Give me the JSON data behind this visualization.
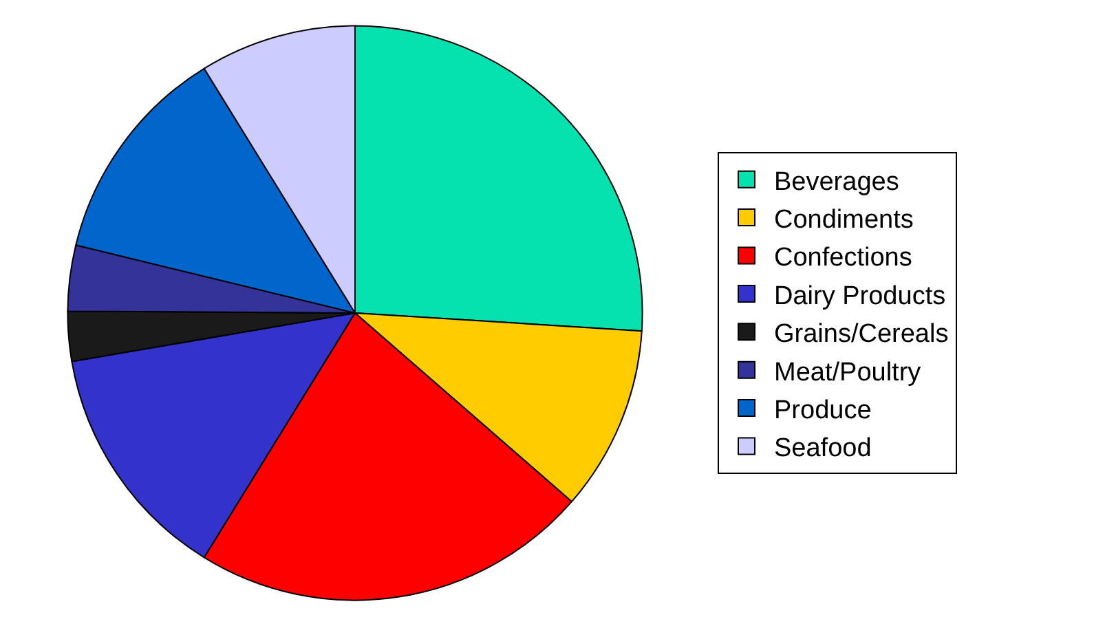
{
  "chart_data": {
    "type": "pie",
    "categories": [
      "Beverages",
      "Condiments",
      "Confections",
      "Dairy Products",
      "Grains/Cereals",
      "Meat/Poultry",
      "Produce",
      "Seafood"
    ],
    "values": [
      26,
      10.4,
      22.4,
      13.5,
      2.8,
      3.7,
      12.4,
      8.8
    ],
    "colors": [
      "#06e1b0",
      "#ffcc00",
      "#ff0000",
      "#3333cc",
      "#1a1a1a",
      "#333399",
      "#0066cc",
      "#ccccff"
    ],
    "legend": "right"
  }
}
